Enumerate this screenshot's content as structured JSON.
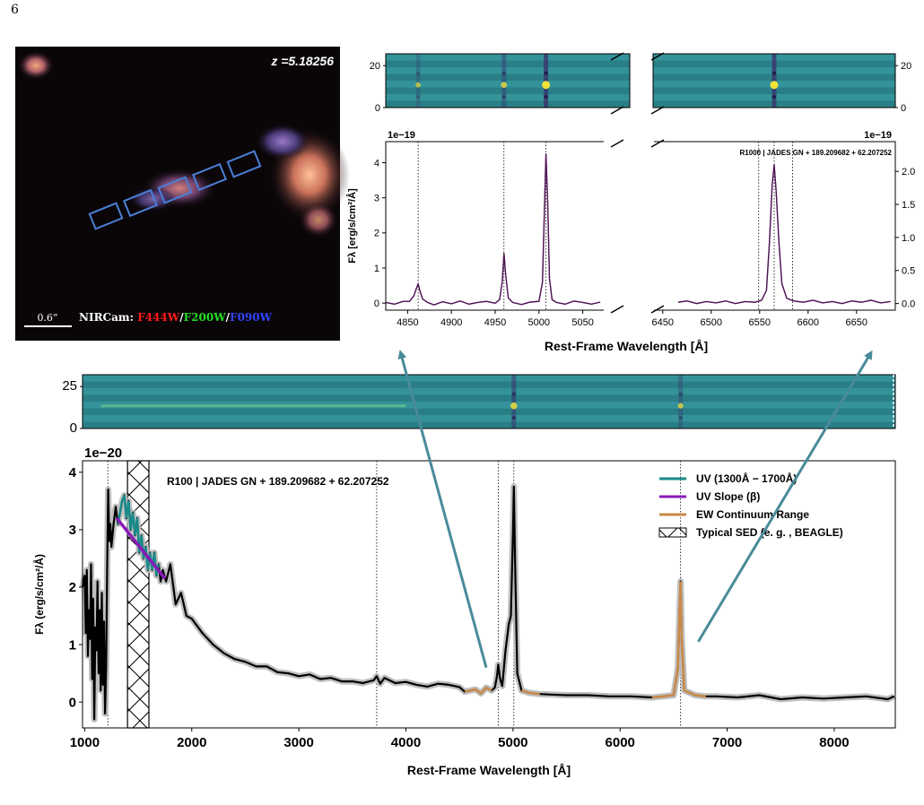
{
  "page_number": "6",
  "image_panel": {
    "redshift_label": "z =5.18256",
    "scale_bar_label": "0.6”",
    "legend_prefix": "NIRCam: ",
    "filters": [
      {
        "name": "F444W",
        "color": "#ff1a1a"
      },
      {
        "name": "F200W",
        "color": "#22dd22"
      },
      {
        "name": "F090W",
        "color": "#3344ff"
      }
    ],
    "slit_color": "#4a7fd6"
  },
  "chart_data": [
    {
      "id": "r1000_hbeta_oiii",
      "type": "line",
      "title": "",
      "xlabel": "",
      "ylabel": "Fλ [erg/s/cm²/Å]",
      "exponent_label": "1e−19",
      "xlim": [
        4825,
        5075
      ],
      "ylim": [
        -0.2,
        4.6
      ],
      "xticks": [
        4850,
        4900,
        4950,
        5000,
        5050
      ],
      "yticks": [
        0,
        1,
        2,
        3,
        4
      ],
      "line_markers": [
        4862,
        4960,
        5008
      ],
      "spectrum_color": "#4a1550",
      "model_color": "#a44aa8",
      "x": [
        4825,
        4835,
        4845,
        4852,
        4857,
        4860,
        4862,
        4864,
        4867,
        4872,
        4880,
        4890,
        4900,
        4910,
        4920,
        4930,
        4940,
        4950,
        4955,
        4958,
        4960,
        4962,
        4965,
        4970,
        4980,
        4990,
        5000,
        5004,
        5006,
        5008,
        5010,
        5012,
        5015,
        5020,
        5030,
        5040,
        5050,
        5060,
        5070
      ],
      "y": [
        0.02,
        -0.03,
        0.05,
        0.05,
        0.2,
        0.42,
        0.55,
        0.35,
        0.12,
        0.03,
        -0.05,
        0.04,
        -0.02,
        0.06,
        -0.03,
        0.02,
        0.05,
        0.0,
        0.1,
        0.6,
        1.42,
        0.8,
        0.15,
        0.02,
        -0.04,
        0.03,
        0.05,
        0.6,
        2.5,
        4.25,
        2.8,
        0.7,
        0.1,
        0.02,
        -0.03,
        0.06,
        0.02,
        -0.03,
        0.03
      ],
      "spectrogram": {
        "ylabel_ticks": [
          "20",
          "0"
        ],
        "line_x": [
          4862,
          4960,
          5008
        ],
        "line_strengths": [
          0.35,
          0.55,
          1.0
        ]
      }
    },
    {
      "id": "r1000_halpha",
      "type": "line",
      "title": "R1000 | JADES GN + 189.209682 + 62.207252",
      "xlabel": "",
      "ylabel": "",
      "exponent_label": "1e−19",
      "xlim": [
        6440,
        6690
      ],
      "ylim": [
        -0.1,
        2.45
      ],
      "xticks": [
        6450,
        6500,
        6550,
        6600,
        6650
      ],
      "yticks": [
        0.0,
        0.5,
        1.0,
        1.5,
        2.0
      ],
      "line_markers": [
        6549,
        6565,
        6584
      ],
      "spectrum_color": "#4a1550",
      "model_color": "#a44aa8",
      "x": [
        6466,
        6475,
        6485,
        6495,
        6505,
        6515,
        6525,
        6535,
        6545,
        6552,
        6557,
        6560,
        6563,
        6565,
        6567,
        6570,
        6573,
        6578,
        6585,
        6595,
        6605,
        6615,
        6625,
        6635,
        6645,
        6655,
        6665,
        6675,
        6685
      ],
      "y": [
        0.02,
        0.04,
        0.0,
        0.03,
        0.01,
        0.04,
        0.0,
        0.03,
        0.02,
        0.05,
        0.2,
        0.9,
        1.8,
        2.1,
        1.7,
        0.9,
        0.3,
        0.08,
        0.04,
        0.02,
        0.05,
        0.01,
        0.03,
        0.0,
        0.04,
        0.02,
        0.05,
        0.01,
        0.03
      ],
      "spectrogram": {
        "ylabel_ticks": [
          "20",
          "0"
        ],
        "line_x": [
          6565
        ],
        "line_strengths": [
          1.0
        ]
      }
    },
    {
      "id": "r1000_shared",
      "type": "line",
      "xlabel": "Rest-Frame Wavelength [Å]",
      "ylabel": "Fλ [erg/s/cm²/Å]"
    },
    {
      "id": "r100_full",
      "type": "line",
      "title": "R100 | JADES GN + 189.209682 + 62.207252",
      "xlabel": "Rest-Frame Wavelength [Å]",
      "ylabel": "Fλ (erg/s/cm²/Å)",
      "exponent_label": "1e−20",
      "xlim": [
        980,
        8570
      ],
      "ylim": [
        -0.45,
        4.2
      ],
      "xticks": [
        1000,
        2000,
        3000,
        4000,
        5000,
        6000,
        7000,
        8000
      ],
      "yticks": [
        0,
        1,
        2,
        3,
        4
      ],
      "line_markers": [
        1216,
        3727,
        4862,
        5008,
        6565
      ],
      "typical_sed_gap": [
        1400,
        1600
      ],
      "uv_slope": {
        "x": [
          1300,
          1750
        ],
        "y": [
          3.2,
          2.15
        ]
      },
      "uv_range": [
        1300,
        1700
      ],
      "ew_ranges": [
        [
          4550,
          4820
        ],
        [
          5050,
          5300
        ],
        [
          6300,
          6850
        ]
      ],
      "spectrogram": {
        "ylabel_ticks": [
          "25",
          "0"
        ],
        "line_x": [
          5008,
          6565
        ],
        "line_strengths": [
          0.7,
          0.45
        ],
        "continuum_end": 4000
      },
      "legend": [
        {
          "label": "UV (1300Å − 1700Å)",
          "color": "#1a8a8a",
          "kind": "line"
        },
        {
          "label": "UV Slope (β)",
          "color": "#8a1ab8",
          "kind": "line"
        },
        {
          "label": "EW Continuum Range",
          "color": "#c8894a",
          "kind": "line"
        },
        {
          "label": "Typical SED (e. g. , BEAGLE)",
          "color": "#000000",
          "kind": "hatch"
        }
      ],
      "colors": {
        "spectrum": "#000000",
        "error_band": "#b8b8b8",
        "uv": "#1a8a8a",
        "slope": "#8a1ab8",
        "ew": "#c8894a",
        "arrow": "#4a8a9a"
      },
      "x": [
        980,
        1000,
        1010,
        1020,
        1030,
        1040,
        1050,
        1060,
        1070,
        1080,
        1090,
        1100,
        1110,
        1120,
        1130,
        1140,
        1150,
        1160,
        1170,
        1180,
        1190,
        1200,
        1210,
        1220,
        1230,
        1240,
        1250,
        1270,
        1290,
        1310,
        1330,
        1350,
        1370,
        1390,
        1410,
        1430,
        1450,
        1470,
        1490,
        1510,
        1530,
        1550,
        1570,
        1590,
        1610,
        1630,
        1650,
        1670,
        1690,
        1710,
        1730,
        1760,
        1800,
        1850,
        1900,
        1950,
        2000,
        2100,
        2200,
        2300,
        2400,
        2500,
        2600,
        2700,
        2800,
        2900,
        3000,
        3100,
        3200,
        3300,
        3400,
        3500,
        3600,
        3700,
        3727,
        3760,
        3800,
        3900,
        4000,
        4100,
        4200,
        4300,
        4400,
        4500,
        4550,
        4600,
        4650,
        4700,
        4750,
        4800,
        4830,
        4850,
        4862,
        4880,
        4900,
        4930,
        4960,
        4980,
        5000,
        5008,
        5020,
        5040,
        5080,
        5150,
        5250,
        5350,
        5500,
        5700,
        5900,
        6100,
        6300,
        6400,
        6500,
        6540,
        6555,
        6565,
        6575,
        6600,
        6700,
        6800,
        6900,
        7100,
        7300,
        7500,
        7700,
        7900,
        8100,
        8300,
        8500,
        8560
      ],
      "y": [
        2.0,
        2.2,
        1.2,
        2.3,
        0.8,
        1.6,
        1.1,
        2.4,
        0.4,
        1.8,
        -0.3,
        1.3,
        0.9,
        2.1,
        0.5,
        1.6,
        0.2,
        1.9,
        0.3,
        1.4,
        -0.2,
        0.6,
        2.4,
        3.7,
        2.8,
        3.1,
        2.7,
        3.1,
        3.4,
        3.1,
        3.3,
        3.5,
        3.6,
        3.2,
        3.5,
        3.0,
        3.3,
        2.9,
        3.2,
        2.6,
        2.9,
        2.5,
        2.7,
        2.3,
        2.6,
        2.3,
        2.6,
        2.2,
        2.4,
        2.1,
        2.3,
        2.1,
        2.4,
        1.7,
        1.9,
        1.5,
        1.45,
        1.2,
        1.0,
        0.85,
        0.75,
        0.7,
        0.62,
        0.62,
        0.52,
        0.5,
        0.45,
        0.48,
        0.4,
        0.42,
        0.36,
        0.36,
        0.33,
        0.38,
        0.45,
        0.32,
        0.42,
        0.33,
        0.35,
        0.3,
        0.27,
        0.32,
        0.3,
        0.26,
        0.18,
        0.2,
        0.22,
        0.15,
        0.25,
        0.2,
        0.25,
        0.45,
        0.65,
        0.4,
        0.28,
        0.9,
        1.35,
        1.5,
        3.0,
        3.75,
        2.4,
        0.5,
        0.2,
        0.16,
        0.14,
        0.13,
        0.12,
        0.12,
        0.1,
        0.1,
        0.08,
        0.1,
        0.12,
        0.6,
        1.6,
        2.1,
        1.1,
        0.2,
        0.12,
        0.1,
        0.1,
        0.08,
        0.12,
        0.05,
        0.08,
        0.06,
        0.08,
        0.1,
        0.05,
        0.1
      ]
    }
  ],
  "arrows": [
    {
      "from_x": 4750,
      "from_y": 0.6,
      "to_panel": "r1000_hbeta_oiii"
    },
    {
      "from_x": 6730,
      "from_y": 1.05,
      "to_panel": "r1000_halpha"
    }
  ]
}
